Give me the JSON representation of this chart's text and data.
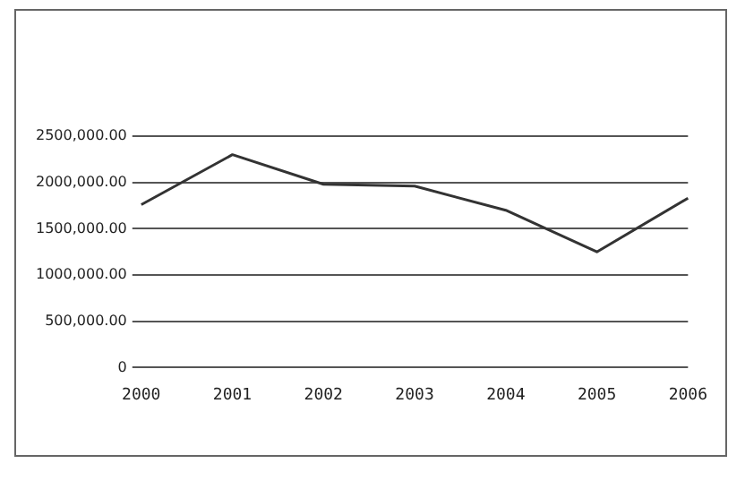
{
  "chart_data": {
    "type": "line",
    "categories": [
      "2000",
      "2001",
      "2002",
      "2003",
      "2004",
      "2005",
      "2006"
    ],
    "series": [
      {
        "color": "#333333",
        "values": [
          1760000,
          2300000,
          1980000,
          1960000,
          1700000,
          1250000,
          1830000
        ]
      }
    ],
    "ylim": [
      0,
      2500000
    ],
    "yticks": [
      {
        "value": 0,
        "label": "0"
      },
      {
        "value": 500000,
        "label": "500,000.00"
      },
      {
        "value": 1000000,
        "label": "1000,000.00"
      },
      {
        "value": 1500000,
        "label": "1500,000.00"
      },
      {
        "value": 2000000,
        "label": "2000,000.00"
      },
      {
        "value": 2500000,
        "label": "2500,000.00"
      }
    ],
    "grid": "y",
    "legend": false,
    "marker": "none",
    "line_style": "solid"
  }
}
